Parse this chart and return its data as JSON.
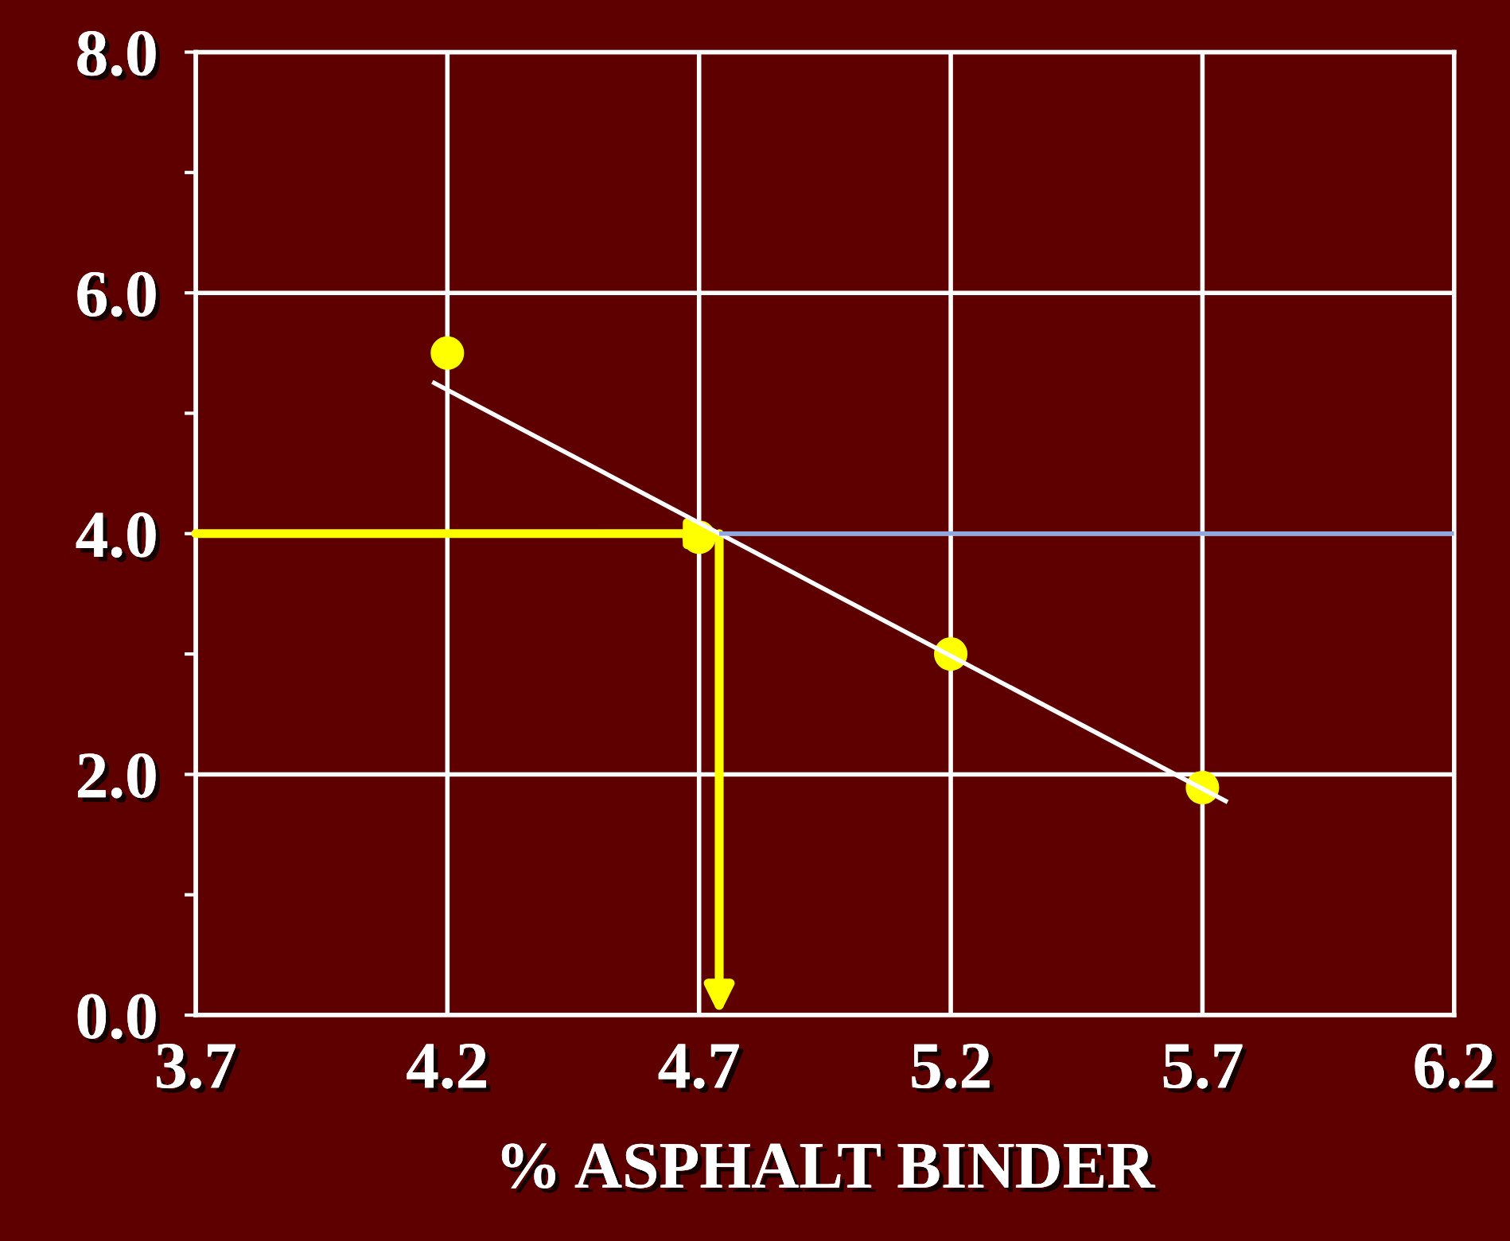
{
  "chart_data": {
    "type": "line",
    "xlabel": "% ASPHALT BINDER",
    "xlim": [
      3.7,
      6.2
    ],
    "xticks": [
      3.7,
      4.2,
      4.7,
      5.2,
      5.7,
      6.2
    ],
    "ylim": [
      0,
      8
    ],
    "yticks": [
      {
        "value": 0,
        "label": "0.0"
      },
      {
        "value": 1,
        "label": null
      },
      {
        "value": 2,
        "label": "2.0"
      },
      {
        "value": 3,
        "label": null
      },
      {
        "value": 4,
        "label": "4.0"
      },
      {
        "value": 5,
        "label": null
      },
      {
        "value": 6,
        "label": "6.0"
      },
      {
        "value": 7,
        "label": null
      },
      {
        "value": 8,
        "label": "8.0"
      }
    ],
    "grid": true,
    "series": [
      {
        "color": "#ffffff",
        "x": [
          4.17,
          5.75
        ],
        "values": [
          5.26,
          1.77
        ]
      },
      {
        "color": "#8fa8e0",
        "x": [
          4.74,
          6.2
        ],
        "values": [
          4.0,
          4.0
        ]
      },
      {
        "type": "scatter",
        "marker": "circle",
        "color": "#ffff00",
        "x": [
          4.2,
          4.7,
          5.2,
          5.7
        ],
        "values": [
          5.5,
          3.97,
          3.0,
          1.89
        ]
      }
    ]
  }
}
